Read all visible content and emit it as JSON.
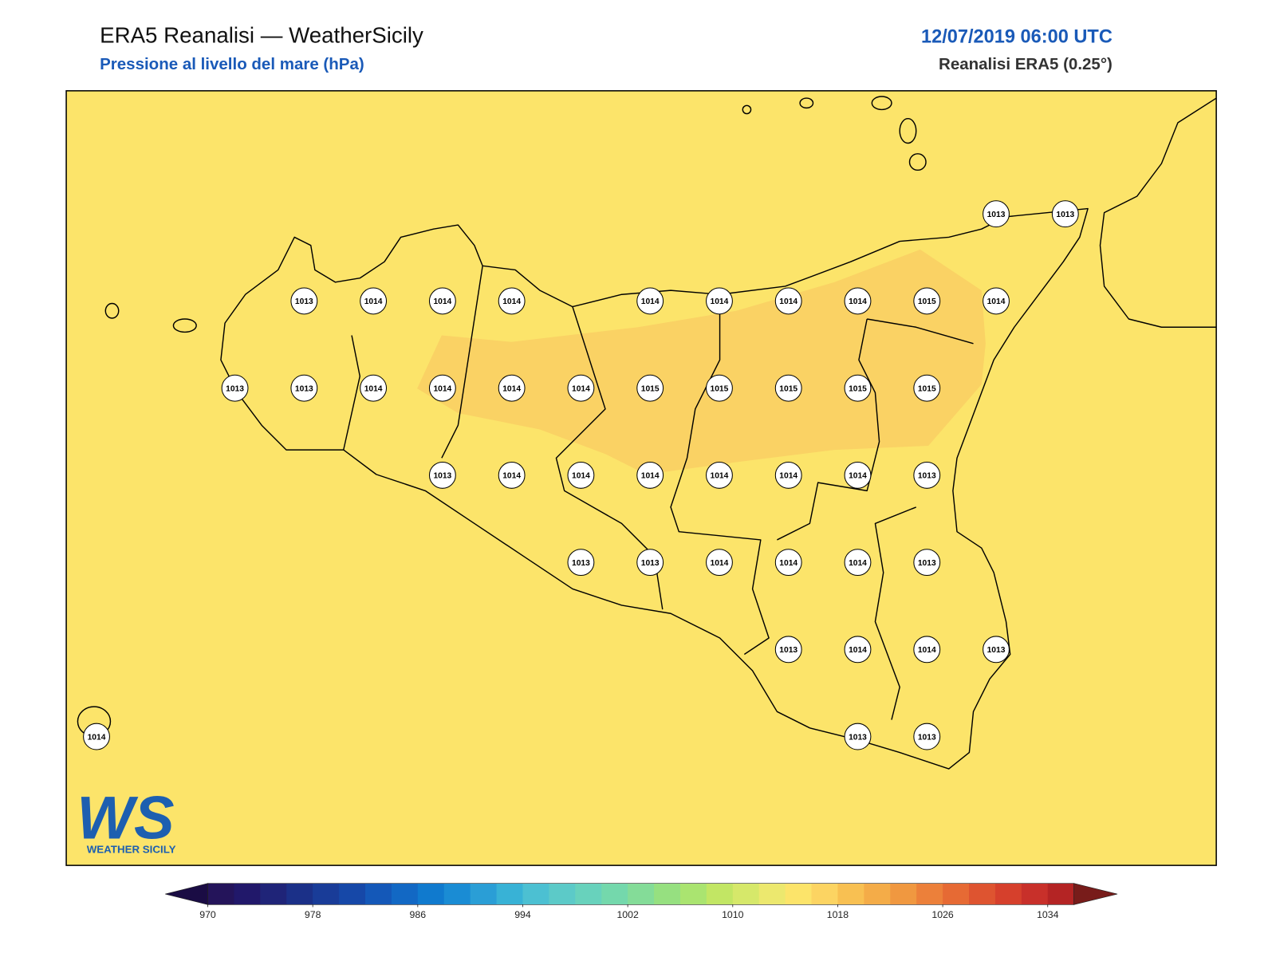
{
  "header": {
    "title": "ERA5 Reanalisi — WeatherSicily",
    "subtitle": "Pressione al livello del mare (hPa)",
    "date": "12/07/2019 06:00 UTC",
    "source": "Reanalisi ERA5 (0.25°)"
  },
  "stations": [
    1013,
    1013,
    1013,
    1014,
    1014,
    1014,
    1014,
    1014,
    1014,
    1014,
    1015,
    1014,
    1013,
    1013,
    1014,
    1014,
    1014,
    1014,
    1015,
    1015,
    1015,
    1015,
    1015,
    1013,
    1014,
    1014,
    1014,
    1014,
    1014,
    1014,
    1013,
    1013,
    1013,
    1014,
    1014,
    1014,
    1013,
    1013,
    1014,
    1014,
    1013,
    1014,
    1013,
    1013
  ],
  "colorbar": {
    "lim": [
      970,
      1036
    ],
    "ticks": [
      970,
      978,
      986,
      994,
      1002,
      1010,
      1018,
      1026,
      1034
    ],
    "under": "#1a0c44",
    "over": "#781c1a",
    "colors": [
      "#24145a",
      "#21186a",
      "#1f2478",
      "#1b3088",
      "#193c98",
      "#1648a8",
      "#1458b8",
      "#1268c4",
      "#107ace",
      "#1a8cd4",
      "#2a9ed6",
      "#38b2d6",
      "#4cc0d2",
      "#5ccac8",
      "#68d2bc",
      "#74d8ac",
      "#84dc98",
      "#96e080",
      "#aae470",
      "#c2e664",
      "#d6e86a",
      "#ece86e",
      "#fce46a",
      "#fcd462",
      "#f8c052",
      "#f4ac48",
      "#f09840",
      "#ec803a",
      "#e66a34",
      "#de5430",
      "#d6402c",
      "#c8302a",
      "#b42424"
    ]
  },
  "logo": {
    "mark": "WS",
    "name": "WEATHER SICILY"
  }
}
